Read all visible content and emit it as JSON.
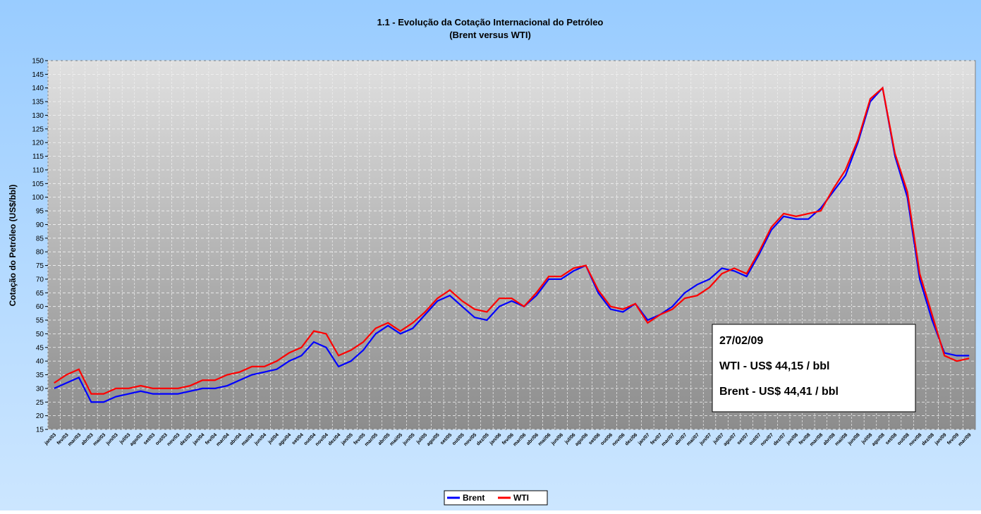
{
  "chart_data": {
    "type": "line",
    "title": [
      "1.1 - Evolução da Cotação Internacional do Petróleo",
      "(Brent versus WTI)"
    ],
    "y_label": "Cotação do Petróleo (US$/bbl)",
    "categories": [
      "jan/03",
      "fev/03",
      "mar/03",
      "abr/03",
      "mai/03",
      "jun/03",
      "jul/03",
      "ago/03",
      "set/03",
      "out/03",
      "nov/03",
      "dez/03",
      "jan/04",
      "fev/04",
      "mar/04",
      "abr/04",
      "mai/04",
      "jun/04",
      "jul/04",
      "ago/04",
      "set/04",
      "out/04",
      "nov/04",
      "dez/04",
      "jan/05",
      "fev/05",
      "mar/05",
      "abr/05",
      "mai/05",
      "jun/05",
      "jul/05",
      "ago/05",
      "set/05",
      "out/05",
      "nov/05",
      "dez/05",
      "jan/06",
      "fev/06",
      "mar/06",
      "abr/06",
      "mai/06",
      "jun/06",
      "jul/06",
      "ago/06",
      "set/06",
      "out/06",
      "nov/06",
      "dez/06",
      "jan/07",
      "fev/07",
      "mar/07",
      "abr/07",
      "mai/07",
      "jun/07",
      "jul/07",
      "ago/07",
      "set/07",
      "out/07",
      "nov/07",
      "dez/07",
      "jan/08",
      "fev/08",
      "mar/08",
      "abr/08",
      "mai/08",
      "jun/08",
      "jul/08",
      "ago/08",
      "set/08",
      "out/08",
      "nov/08",
      "dez/08",
      "jan/09",
      "fev/09",
      "mar/09"
    ],
    "series": [
      {
        "name": "Brent",
        "color": "#0000ff",
        "values": [
          30,
          32,
          34,
          25,
          25,
          27,
          28,
          29,
          28,
          28,
          28,
          29,
          30,
          30,
          31,
          33,
          35,
          36,
          37,
          40,
          42,
          47,
          45,
          38,
          40,
          44,
          50,
          53,
          50,
          52,
          57,
          62,
          64,
          60,
          56,
          55,
          60,
          62,
          60,
          64,
          70,
          70,
          73,
          75,
          65,
          59,
          58,
          61,
          55,
          57,
          60,
          65,
          68,
          70,
          74,
          73,
          71,
          79,
          88,
          93,
          92,
          92,
          96,
          102,
          108,
          120,
          135,
          140,
          115,
          100,
          70,
          55,
          43,
          42,
          42
        ]
      },
      {
        "name": "WTI",
        "color": "#ff0000",
        "values": [
          32,
          35,
          37,
          28,
          28,
          30,
          30,
          31,
          30,
          30,
          30,
          31,
          33,
          33,
          35,
          36,
          38,
          38,
          40,
          43,
          45,
          51,
          50,
          42,
          44,
          47,
          52,
          54,
          51,
          54,
          58,
          63,
          66,
          62,
          59,
          58,
          63,
          63,
          60,
          65,
          71,
          71,
          74,
          75,
          66,
          60,
          59,
          61,
          54,
          57,
          59,
          63,
          64,
          67,
          72,
          74,
          72,
          80,
          89,
          94,
          93,
          94,
          95,
          103,
          110,
          121,
          136,
          140,
          116,
          102,
          72,
          57,
          42,
          40,
          41
        ]
      }
    ],
    "ylim": [
      15,
      150
    ],
    "yticks": [
      15,
      20,
      25,
      30,
      35,
      40,
      45,
      50,
      55,
      60,
      65,
      70,
      75,
      80,
      85,
      90,
      95,
      100,
      105,
      110,
      115,
      120,
      125,
      130,
      135,
      140,
      145,
      150
    ],
    "grid": true,
    "annotations": [
      "27/02/09",
      "WTI - US$ 44,15 / bbl",
      "Brent - US$ 44,41 / bbl"
    ],
    "legend": "bottom"
  }
}
